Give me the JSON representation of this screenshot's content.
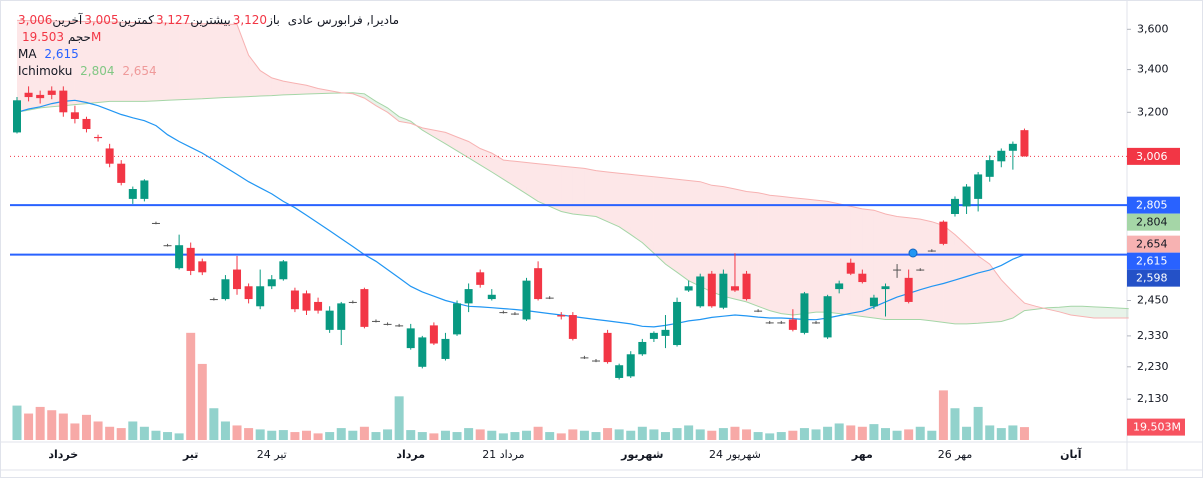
{
  "legend": {
    "symbol": "مادیرا, فرابورس عادی",
    "ohlc": [
      {
        "name": "باز",
        "label": "3,120"
      },
      {
        "name": "بیشترین",
        "label": "3,127"
      },
      {
        "name": "کمترین",
        "label": "3,005"
      },
      {
        "name": "آخرین",
        "label": "3,006"
      }
    ],
    "volume": {
      "name": "حجم",
      "label": "19.503M"
    },
    "ma": {
      "name": "MA",
      "label": "2,615"
    },
    "ichimoku": {
      "name": "Ichimoku",
      "labels": [
        "2,804",
        "2,654"
      ]
    }
  },
  "chart_data": {
    "type": "candlestick",
    "log_scale": true,
    "up_color": "#089981",
    "down_color": "#f23645",
    "flat_color": "#555555",
    "categories": [
      null,
      null,
      null,
      null,
      "خرداد",
      null,
      null,
      null,
      null,
      null,
      null,
      null,
      null,
      null,
      null,
      "تیر",
      null,
      null,
      null,
      null,
      null,
      null,
      "24 تیر",
      null,
      null,
      null,
      null,
      null,
      null,
      null,
      null,
      null,
      null,
      null,
      "مرداد",
      null,
      null,
      null,
      null,
      null,
      null,
      null,
      "21 مرداد",
      null,
      null,
      null,
      null,
      null,
      null,
      null,
      null,
      null,
      null,
      null,
      "شهریور",
      null,
      null,
      null,
      null,
      null,
      null,
      null,
      "24 شهریور",
      null,
      null,
      null,
      null,
      null,
      null,
      null,
      null,
      null,
      null,
      "مهر",
      null,
      null,
      null,
      null,
      null,
      null,
      null,
      "26 مهر",
      null,
      null,
      null,
      null,
      null,
      null,
      null,
      null,
      null,
      "آبان",
      null,
      null,
      null,
      null,
      null
    ],
    "open": [
      3110,
      3290,
      3280,
      3300,
      3300,
      3200,
      3170,
      3090,
      3040,
      2975,
      2830,
      2830,
      2735,
      2650,
      2565,
      2640,
      2590,
      2455,
      2455,
      2560,
      2500,
      2430,
      2500,
      2525,
      2485,
      2475,
      2445,
      2350,
      2350,
      2445,
      2490,
      2380,
      2370,
      2365,
      2290,
      2230,
      2365,
      2255,
      2335,
      2440,
      2550,
      2455,
      2410,
      2405,
      2385,
      2565,
      2460,
      2400,
      2400,
      2260,
      2250,
      2340,
      2195,
      2200,
      2270,
      2320,
      2330,
      2300,
      2485,
      2430,
      2545,
      2425,
      2500,
      2545,
      2415,
      2375,
      2375,
      2385,
      2340,
      2375,
      2325,
      2490,
      2585,
      2545,
      2430,
      2490,
      2560,
      2530,
      2560,
      2630,
      2740,
      2770,
      2800,
      2830,
      2920,
      2985,
      3030,
      3120,
      null,
      null,
      null,
      null,
      null,
      null,
      null,
      null,
      null
    ],
    "high": [
      3270,
      3320,
      3300,
      3320,
      3320,
      3230,
      3180,
      3100,
      3060,
      2990,
      2880,
      2910,
      2740,
      2655,
      2690,
      2660,
      2600,
      2460,
      2540,
      2610,
      2510,
      2560,
      2540,
      2595,
      2495,
      2485,
      2460,
      2430,
      2445,
      2450,
      2495,
      2385,
      2375,
      2370,
      2370,
      2330,
      2375,
      2340,
      2450,
      2510,
      2560,
      2490,
      2415,
      2410,
      2530,
      2590,
      2465,
      2410,
      2410,
      2265,
      2255,
      2350,
      2240,
      2280,
      2320,
      2345,
      2400,
      2460,
      2520,
      2545,
      2555,
      2560,
      2620,
      2555,
      2420,
      2380,
      2380,
      2420,
      2480,
      2380,
      2470,
      2520,
      2600,
      2560,
      2470,
      2510,
      2580,
      2560,
      2565,
      2635,
      2745,
      2840,
      2890,
      2940,
      3010,
      3040,
      3070,
      3127,
      null,
      null,
      null,
      null,
      null,
      null,
      null,
      null,
      null
    ],
    "low": [
      3105,
      3250,
      3240,
      3260,
      3180,
      3150,
      3110,
      3070,
      2960,
      2885,
      2810,
      2820,
      2730,
      2645,
      2560,
      2540,
      2540,
      2450,
      2450,
      2470,
      2440,
      2420,
      2490,
      2520,
      2410,
      2400,
      2405,
      2340,
      2300,
      2440,
      2355,
      2375,
      2365,
      2360,
      2285,
      2225,
      2300,
      2250,
      2330,
      2410,
      2495,
      2450,
      2405,
      2400,
      2380,
      2450,
      2455,
      2385,
      2315,
      2255,
      2245,
      2240,
      2190,
      2195,
      2265,
      2310,
      2290,
      2295,
      2480,
      2425,
      2425,
      2420,
      2480,
      2450,
      2410,
      2370,
      2370,
      2345,
      2335,
      2370,
      2320,
      2475,
      2540,
      2510,
      2420,
      2395,
      2530,
      2440,
      2555,
      2625,
      2650,
      2760,
      2770,
      2780,
      2900,
      2960,
      2950,
      3005,
      null,
      null,
      null,
      null,
      null,
      null,
      null,
      null,
      null
    ],
    "close": [
      3255,
      3270,
      3265,
      3280,
      3200,
      3170,
      3125,
      3085,
      2975,
      2895,
      2870,
      2905,
      2735,
      2650,
      2650,
      2555,
      2550,
      2455,
      2525,
      2490,
      2455,
      2500,
      2525,
      2590,
      2420,
      2415,
      2415,
      2415,
      2440,
      2445,
      2360,
      2380,
      2370,
      2365,
      2355,
      2325,
      2305,
      2320,
      2440,
      2490,
      2505,
      2470,
      2410,
      2405,
      2520,
      2455,
      2460,
      2395,
      2320,
      2260,
      2250,
      2245,
      2235,
      2270,
      2310,
      2340,
      2350,
      2445,
      2500,
      2535,
      2430,
      2545,
      2485,
      2455,
      2415,
      2375,
      2375,
      2350,
      2475,
      2375,
      2465,
      2510,
      2545,
      2515,
      2460,
      2500,
      2560,
      2445,
      2560,
      2630,
      2655,
      2830,
      2880,
      2930,
      2990,
      3030,
      3060,
      3006,
      null,
      null,
      null,
      null,
      null,
      null,
      null,
      null,
      null
    ],
    "volume": {
      "up_color": "rgba(38,166,154,0.5)",
      "down_color": "rgba(239,83,80,0.5)",
      "ylim": [
        0,
        650
      ],
      "last_label": "19.503M",
      "label_color": "#f7525f",
      "values": [
        52,
        40,
        50,
        45,
        40,
        25,
        38,
        28,
        20,
        18,
        28,
        20,
        14,
        12,
        10,
        162,
        115,
        48,
        28,
        22,
        18,
        16,
        14,
        15,
        12,
        14,
        10,
        12,
        18,
        14,
        20,
        12,
        16,
        66,
        15,
        12,
        10,
        14,
        12,
        18,
        16,
        14,
        10,
        12,
        14,
        20,
        12,
        10,
        16,
        14,
        12,
        18,
        16,
        14,
        20,
        16,
        12,
        18,
        22,
        16,
        14,
        18,
        20,
        16,
        12,
        10,
        12,
        14,
        18,
        16,
        20,
        25,
        22,
        20,
        24,
        18,
        14,
        16,
        20,
        14,
        75,
        48,
        20,
        50,
        22,
        18,
        22,
        19.503,
        null,
        null,
        null,
        null,
        null,
        null,
        null,
        null,
        null
      ]
    },
    "ma": {
      "color": "#2196f3",
      "values": [
        3200,
        3215,
        3225,
        3240,
        3250,
        3255,
        3245,
        3230,
        3210,
        3190,
        3175,
        3162,
        3140,
        3100,
        3070,
        3045,
        3020,
        2990,
        2960,
        2930,
        2900,
        2875,
        2850,
        2820,
        2795,
        2765,
        2735,
        2705,
        2675,
        2645,
        2615,
        2590,
        2560,
        2530,
        2500,
        2480,
        2465,
        2450,
        2440,
        2430,
        2428,
        2425,
        2422,
        2419,
        2415,
        2410,
        2405,
        2400,
        2395,
        2390,
        2385,
        2380,
        2375,
        2370,
        2362,
        2360,
        2365,
        2372,
        2380,
        2385,
        2392,
        2396,
        2400,
        2397,
        2393,
        2390,
        2390,
        2388,
        2385,
        2384,
        2390,
        2398,
        2406,
        2413,
        2428,
        2445,
        2462,
        2475,
        2488,
        2500,
        2510,
        2522,
        2535,
        2548,
        2558,
        2575,
        2598,
        2615,
        null,
        null,
        null,
        null,
        null,
        null,
        null,
        null,
        null
      ]
    },
    "ichimoku": {
      "cloud_up_color": "rgba(67,160,71,0.12)",
      "cloud_down_color": "rgba(242,54,69,0.12)",
      "span_a": {
        "color": "#a5d6a7",
        "values": [
          3200,
          3210,
          3220,
          3225,
          3230,
          3235,
          3240,
          3245,
          3250,
          3250,
          3250,
          3250,
          3252,
          3255,
          3258,
          3260,
          3262,
          3265,
          3268,
          3270,
          3272,
          3275,
          3277,
          3280,
          3282,
          3284,
          3286,
          3288,
          3289,
          3290,
          3285,
          3250,
          3220,
          3180,
          3160,
          3120,
          3090,
          3060,
          3030,
          3000,
          2970,
          2940,
          2910,
          2880,
          2850,
          2820,
          2800,
          2780,
          2770,
          2765,
          2760,
          2740,
          2720,
          2690,
          2660,
          2620,
          2580,
          2550,
          2520,
          2500,
          2480,
          2465,
          2455,
          2445,
          2430,
          2415,
          2405,
          2400,
          2405,
          2410,
          2410,
          2405,
          2400,
          2395,
          2390,
          2385,
          2385,
          2385,
          2385,
          2380,
          2375,
          2370,
          2370,
          2372,
          2375,
          2378,
          2390,
          2415,
          2420,
          2425,
          2427,
          2430,
          2430,
          2428,
          2426,
          2424,
          2422
        ]
      },
      "span_b": {
        "color": "#f7b2b2",
        "values": [
          3646,
          3645,
          3644,
          3643,
          3642,
          3640,
          3640,
          3639,
          3638,
          3637,
          3635,
          3634,
          3633,
          3632,
          3631,
          3630,
          3629,
          3628,
          3626,
          3625,
          3470,
          3395,
          3360,
          3345,
          3335,
          3325,
          3310,
          3300,
          3290,
          3285,
          3265,
          3230,
          3200,
          3159,
          3150,
          3130,
          3120,
          3110,
          3090,
          3070,
          3040,
          3020,
          2990,
          2985,
          2980,
          2975,
          2970,
          2965,
          2960,
          2955,
          2946,
          2940,
          2935,
          2930,
          2925,
          2920,
          2915,
          2910,
          2905,
          2900,
          2885,
          2880,
          2870,
          2860,
          2855,
          2845,
          2840,
          2835,
          2830,
          2825,
          2820,
          2810,
          2800,
          2790,
          2785,
          2770,
          2760,
          2755,
          2750,
          2740,
          2725,
          2690,
          2650,
          2610,
          2580,
          2523,
          2480,
          2441,
          2430,
          2420,
          2411,
          2400,
          2395,
          2390,
          2390,
          2390,
          2390
        ]
      }
    },
    "price_labels": [
      {
        "value": 3006,
        "label": "3,006",
        "color": "#f23645",
        "line": "dotted"
      },
      {
        "value": 2805,
        "label": "2,805",
        "color": "#2962ff",
        "line": "solid"
      },
      {
        "value": 2804,
        "label": "2,804",
        "color": "#a5d6a7",
        "text_color": "#131722"
      },
      {
        "value": 2654,
        "label": "2,654",
        "color": "#f7b2b2",
        "text_color": "#131722"
      },
      {
        "value": 2615,
        "label": "2,615",
        "color": "#2962ff",
        "line": "solid"
      },
      {
        "value": 2598,
        "label": "2,598",
        "color": "#2451c7"
      }
    ],
    "ylim": [
      2010,
      3700
    ],
    "yticks": [
      {
        "value": 3600,
        "label": "3,600"
      },
      {
        "value": 3400,
        "label": "3,400"
      },
      {
        "value": 3200,
        "label": "3,200"
      },
      {
        "value": 2450,
        "label": "2,450"
      },
      {
        "value": 2330,
        "label": "2,330"
      },
      {
        "value": 2230,
        "label": "2,230"
      },
      {
        "value": 2130,
        "label": "2,130"
      }
    ]
  }
}
